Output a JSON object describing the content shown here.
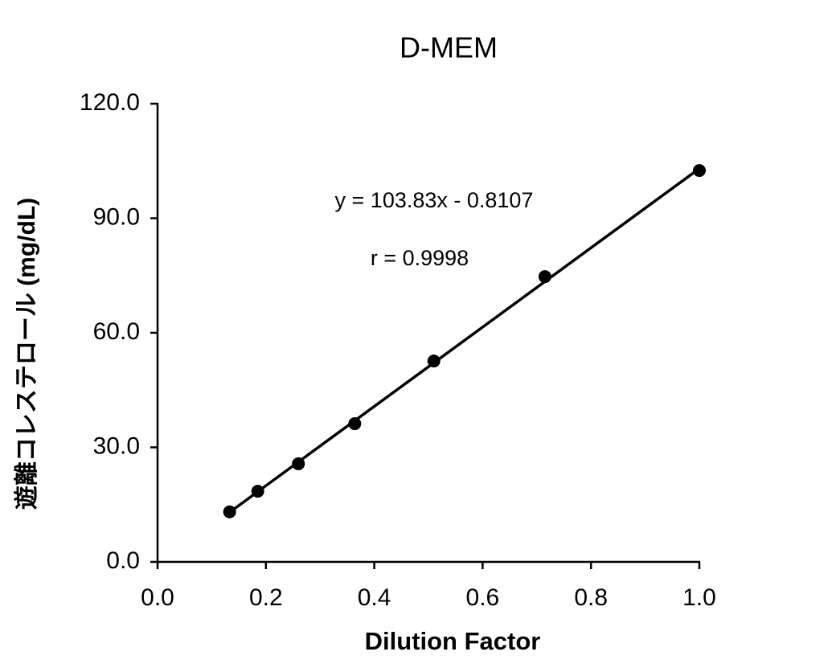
{
  "chart_data": {
    "type": "scatter",
    "title": "D-MEM",
    "x_label": "Dilution Factor",
    "y_label": "遊離コレステロール (mg/dL)",
    "series": [
      {
        "color": "#000000",
        "x": [
          0.133,
          0.185,
          0.26,
          0.364,
          0.51,
          0.715,
          1.0
        ],
        "values": [
          13.1,
          18.5,
          25.7,
          36.2,
          52.6,
          74.7,
          102.5
        ]
      }
    ],
    "trendline": {
      "slope": 103.83,
      "intercept": -0.8107,
      "color": "#000000",
      "label": "y = 103.83x - 0.8107"
    },
    "annotations": [
      "r = 0.9998"
    ],
    "xlim": [
      0,
      1
    ],
    "ylim": [
      0,
      120
    ],
    "xticks": [
      {
        "value": 0,
        "label": "0.0"
      },
      {
        "value": 0.2,
        "label": "0.2"
      },
      {
        "value": 0.4,
        "label": "0.4"
      },
      {
        "value": 0.6,
        "label": "0.6"
      },
      {
        "value": 0.8,
        "label": "0.8"
      },
      {
        "value": 1,
        "label": "1.0"
      }
    ],
    "yticks": [
      {
        "value": 0,
        "label": "0.0"
      },
      {
        "value": 30,
        "label": "30.0"
      },
      {
        "value": 60,
        "label": "60.0"
      },
      {
        "value": 90,
        "label": "90.0"
      },
      {
        "value": 120,
        "label": "120.0"
      }
    ],
    "grid": false
  }
}
